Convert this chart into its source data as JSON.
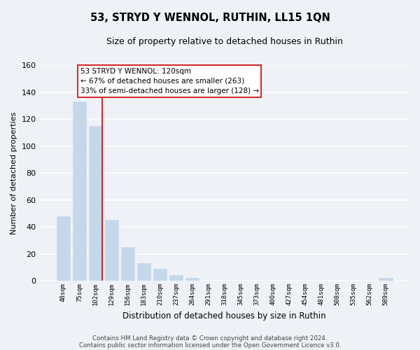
{
  "title": "53, STRYD Y WENNOL, RUTHIN, LL15 1QN",
  "subtitle": "Size of property relative to detached houses in Ruthin",
  "xlabel": "Distribution of detached houses by size in Ruthin",
  "ylabel": "Number of detached properties",
  "bar_labels": [
    "48sqm",
    "75sqm",
    "102sqm",
    "129sqm",
    "156sqm",
    "183sqm",
    "210sqm",
    "237sqm",
    "264sqm",
    "291sqm",
    "318sqm",
    "345sqm",
    "373sqm",
    "400sqm",
    "427sqm",
    "454sqm",
    "481sqm",
    "508sqm",
    "535sqm",
    "562sqm",
    "589sqm"
  ],
  "bar_values": [
    48,
    133,
    115,
    45,
    25,
    13,
    9,
    4,
    2,
    0,
    0,
    0,
    0,
    0,
    0,
    0,
    0,
    0,
    0,
    0,
    2
  ],
  "bar_color": "#c5d8ea",
  "marker_label": "53 STRYD Y WENNOL: 120sqm",
  "annotation_line1": "← 67% of detached houses are smaller (263)",
  "annotation_line2": "33% of semi-detached houses are larger (128) →",
  "marker_color": "#cc0000",
  "ylim": [
    0,
    160
  ],
  "yticks": [
    0,
    20,
    40,
    60,
    80,
    100,
    120,
    140,
    160
  ],
  "footer_line1": "Contains HM Land Registry data © Crown copyright and database right 2024.",
  "footer_line2": "Contains public sector information licensed under the Open Government Licence v3.0.",
  "bg_color": "#eef2f7",
  "grid_color": "#ffffff",
  "annotation_box_facecolor": "#ffffff",
  "annotation_box_edgecolor": "#cc0000"
}
